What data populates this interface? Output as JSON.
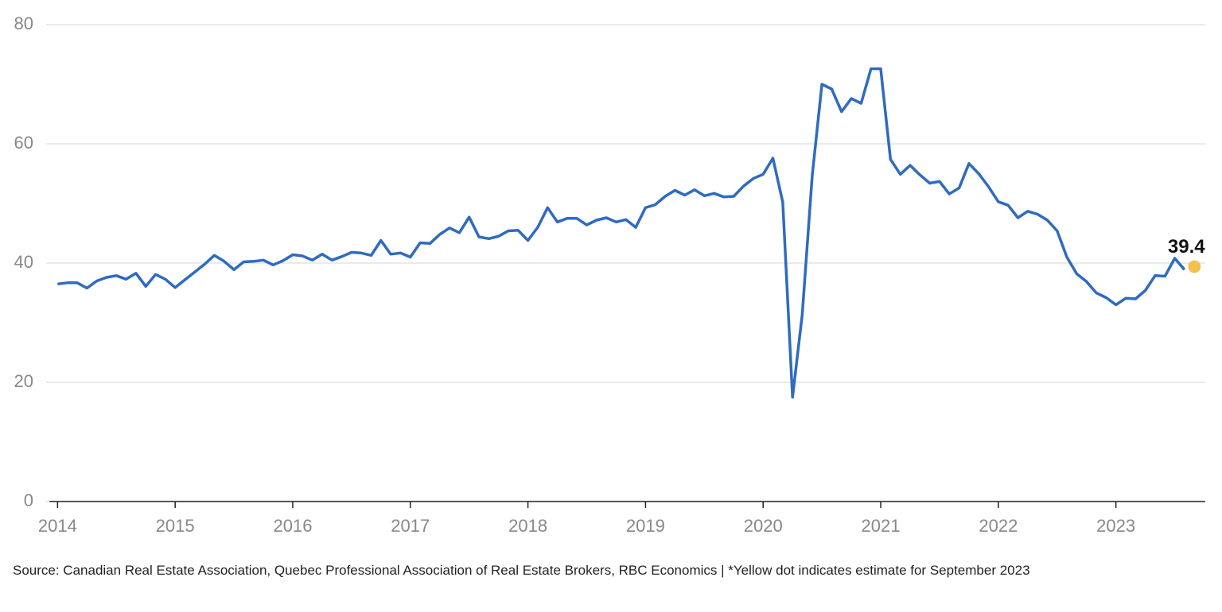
{
  "chart_data": {
    "type": "line",
    "x": [
      2014,
      2014.083,
      2014.167,
      2014.25,
      2014.333,
      2014.417,
      2014.5,
      2014.583,
      2014.667,
      2014.75,
      2014.833,
      2014.917,
      2015,
      2015.083,
      2015.167,
      2015.25,
      2015.333,
      2015.417,
      2015.5,
      2015.583,
      2015.667,
      2015.75,
      2015.833,
      2015.917,
      2016,
      2016.083,
      2016.167,
      2016.25,
      2016.333,
      2016.417,
      2016.5,
      2016.583,
      2016.667,
      2016.75,
      2016.833,
      2016.917,
      2017,
      2017.083,
      2017.167,
      2017.25,
      2017.333,
      2017.417,
      2017.5,
      2017.583,
      2017.667,
      2017.75,
      2017.833,
      2017.917,
      2018,
      2018.083,
      2018.167,
      2018.25,
      2018.333,
      2018.417,
      2018.5,
      2018.583,
      2018.667,
      2018.75,
      2018.833,
      2018.917,
      2019,
      2019.083,
      2019.167,
      2019.25,
      2019.333,
      2019.417,
      2019.5,
      2019.583,
      2019.667,
      2019.75,
      2019.833,
      2019.917,
      2020,
      2020.083,
      2020.167,
      2020.25,
      2020.333,
      2020.417,
      2020.5,
      2020.583,
      2020.667,
      2020.75,
      2020.833,
      2020.917,
      2021,
      2021.083,
      2021.167,
      2021.25,
      2021.333,
      2021.417,
      2021.5,
      2021.583,
      2021.667,
      2021.75,
      2021.833,
      2021.917,
      2022,
      2022.083,
      2022.167,
      2022.25,
      2022.333,
      2022.417,
      2022.5,
      2022.583,
      2022.667,
      2022.75,
      2022.833,
      2022.917,
      2023,
      2023.083,
      2023.167,
      2023.25,
      2023.333,
      2023.417,
      2023.5,
      2023.583
    ],
    "series": [
      {
        "color": "#2f6bc0",
        "values": [
          36.5,
          36.7,
          36.7,
          35.8,
          37.0,
          37.6,
          37.9,
          37.3,
          38.3,
          36.1,
          38.1,
          37.3,
          35.9,
          37.2,
          38.5,
          39.8,
          41.3,
          40.3,
          38.9,
          40.2,
          40.3,
          40.5,
          39.7,
          40.4,
          41.4,
          41.2,
          40.5,
          41.5,
          40.5,
          41.1,
          41.8,
          41.7,
          41.3,
          43.8,
          41.5,
          41.7,
          41.0,
          43.4,
          43.3,
          44.8,
          45.9,
          45.1,
          47.7,
          44.4,
          44.1,
          44.5,
          45.4,
          45.5,
          43.8,
          46.0,
          49.3,
          46.9,
          47.5,
          47.5,
          46.4,
          47.2,
          47.6,
          46.9,
          47.3,
          46.0,
          49.3,
          49.8,
          51.2,
          52.2,
          51.4,
          52.3,
          51.3,
          51.7,
          51.1,
          51.2,
          52.9,
          54.2,
          54.9,
          57.6,
          50.2,
          17.5,
          31.4,
          54.6,
          70.0,
          69.2,
          65.4,
          67.6,
          66.8,
          72.6,
          72.6,
          57.4,
          54.9,
          56.4,
          54.8,
          53.4,
          53.7,
          51.6,
          52.6,
          56.7,
          55.0,
          52.8,
          50.3,
          49.7,
          47.6,
          48.7,
          48.2,
          47.2,
          45.4,
          41.0,
          38.2,
          36.9,
          35.0,
          34.2,
          33.0,
          34.1,
          34.0,
          35.4,
          37.9,
          37.8,
          40.8,
          38.9
        ]
      }
    ],
    "estimate": {
      "x": 2023.667,
      "value": 39.4,
      "color": "#f4c150"
    },
    "xlim": [
      2013.93,
      2023.76
    ],
    "xticks": [
      2014,
      2015,
      2016,
      2017,
      2018,
      2019,
      2020,
      2021,
      2022,
      2023
    ],
    "ylim": [
      0,
      80
    ],
    "yticks": [
      0,
      20,
      40,
      60,
      80
    ],
    "grid": true,
    "source": "Source: Canadian Real Estate Association, Quebec Professional Association of Real Estate Brokers, RBC Economics | *Yellow dot indicates estimate for September 2023"
  }
}
